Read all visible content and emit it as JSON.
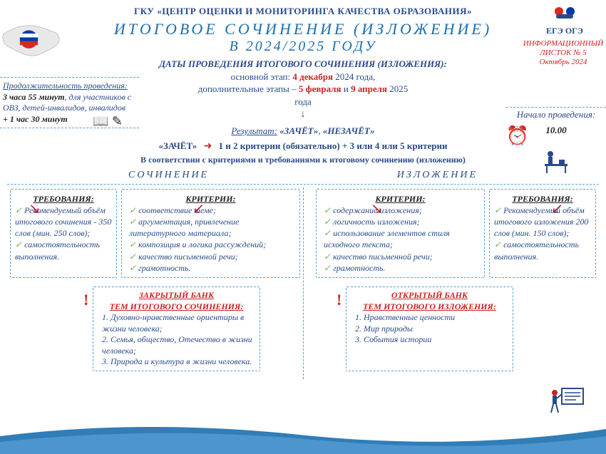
{
  "colors": {
    "blue": "#2a4a8a",
    "lightblue": "#5aa0d8",
    "red": "#c22",
    "titleblue": "#1a6fb0",
    "green": "#6aa84f"
  },
  "org": "ГКУ «ЦЕНТР ОЦЕНКИ И МОНИТОРИНГА КАЧЕСТВА ОБРАЗОВАНИЯ»",
  "title_line1": "ИТОГОВОЕ СОЧИНЕНИЕ (ИЗЛОЖЕНИЕ)",
  "title_line2": "В 2024/2025 ГОДУ",
  "ege_label": "ЕГЭ    ОГЭ",
  "info_sheet": {
    "l1": "ИНФОРМАЦИОННЫЙ",
    "l2": "ЛИСТОК № 5",
    "l3": "Октябрь 2024"
  },
  "dates": {
    "header": "ДАТЫ ПРОВЕДЕНИЯ ИТОГОВОГО СОЧИНЕНИЯ (ИЗЛОЖЕНИЯ):",
    "line1_a": "основной этап: ",
    "line1_b": "4 декабря",
    "line1_c": " 2024 года,",
    "line2_a": "дополнительные этапы – ",
    "line2_b": "5 февраля",
    "line2_c": " и ",
    "line2_d": "9 апреля",
    "line2_e": " 2025",
    "line3": "года"
  },
  "duration": {
    "label": "Продолжительность проведения:",
    "t1": "3 часа 55 минут",
    "t1_suffix": ", для участников с ОВЗ, детей-инвалидов, инвалидов",
    "t2": "+ 1 час 30 минут"
  },
  "start": {
    "label": "Начало проведения:",
    "time": "10.00"
  },
  "result": {
    "label": "Результат:",
    "pass": "«ЗАЧЁТ»",
    "fail": "«НЕЗАЧЁТ»",
    "zachet": "«ЗАЧЁТ»",
    "crit_a": "1 и 2 критерии ",
    "crit_b": "(обязательно)",
    "crit_c": " + 3 или 4 или 5 критерии",
    "footer": "В соответствии с критериями и требованиями к итоговому сочинению (изложению)"
  },
  "col_left": "СОЧИНЕНИЕ",
  "col_right": "ИЗЛОЖЕНИЕ",
  "essay": {
    "req_header": "ТРЕБОВАНИЯ:",
    "req": [
      "Рекомендуемый объём итогового сочинения - 350 слов (мин. 250 слов);",
      "самостоятельность выполнения."
    ],
    "crit_header": "КРИТЕРИИ:",
    "crit": [
      "соответствие теме;",
      "аргументация, привлечение литературного материала;",
      "композиция и логика рассуждений;",
      "качество письменной речи;",
      "грамотность."
    ]
  },
  "expo": {
    "req_header": "ТРЕБОВАНИЯ:",
    "req": [
      "Рекомендуемый объём итогового изложения 200 слов (мин. 150 слов);",
      "самостоятельность выполнения."
    ],
    "crit_header": "КРИТЕРИИ:",
    "crit": [
      "содержание изложения;",
      "логичность изложения;",
      "использование элементов стиля исходного текста;",
      "качество письменной речи;",
      "грамотность."
    ]
  },
  "bank_essay": {
    "h1": "ЗАКРЫТЫЙ БАНК",
    "h2": "ТЕМ ИТОГОВОГО СОЧИНЕНИЯ:",
    "items": [
      "Духовно-нравственные ориентиры в жизни человека;",
      "Семья, общество, Отечество в жизни человека;",
      "Природа и культура в жизни человека."
    ]
  },
  "bank_expo": {
    "h1": "ОТКРЫТЫЙ БАНК",
    "h2": "ТЕМ ИТОГОВОГО ИЗЛОЖЕНИЯ:",
    "items": [
      "Нравственные ценности",
      "Мир природы",
      "События истории"
    ]
  }
}
